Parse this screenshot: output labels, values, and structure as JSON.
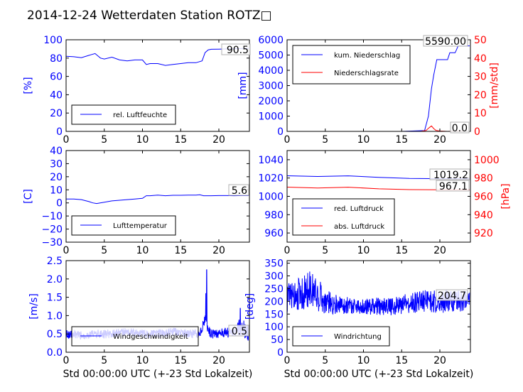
{
  "page": {
    "title": "2014-12-24 Wetterdaten Station ROTZ□"
  },
  "colors": {
    "blue": "#0000ff",
    "red": "#ff0000",
    "black": "#000000"
  },
  "chart_data": [
    {
      "type": "line",
      "ylabel": "[%]",
      "xlabel": "",
      "xlim": [
        0,
        24
      ],
      "ylim": [
        0,
        100
      ],
      "xticks": [
        "0",
        "5",
        "10",
        "15",
        "20"
      ],
      "yticks": [
        "0",
        "20",
        "40",
        "60",
        "80",
        "100"
      ],
      "legend": "lower-left",
      "annotations": [
        "90.5"
      ],
      "series": [
        {
          "name": "rel. Luftfeuchte",
          "color": "#0000ff",
          "x": [
            0,
            1,
            2,
            3,
            3.8,
            4.5,
            5,
            6,
            7,
            8,
            9,
            10,
            10.5,
            11,
            12,
            13,
            14,
            15,
            16,
            17,
            17.8,
            18.2,
            18.6,
            19,
            20,
            21,
            22,
            23,
            23.9
          ],
          "y": [
            82,
            81.5,
            80.5,
            83,
            85,
            80,
            79,
            81,
            78,
            77,
            78,
            78,
            73,
            74,
            74,
            72,
            73,
            74,
            75,
            75,
            77,
            86,
            89,
            89.6,
            89.8,
            90.0,
            90.2,
            90.4,
            90.5
          ]
        }
      ]
    },
    {
      "type": "line",
      "ylabel": "[mm]",
      "y2label": "[mm/std]",
      "xlabel": "",
      "xlim": [
        0,
        24
      ],
      "ylim": [
        0,
        6000
      ],
      "y2lim": [
        0,
        50
      ],
      "xticks": [
        "0",
        "5",
        "10",
        "15",
        "20"
      ],
      "yticks": [
        "0",
        "1000",
        "2000",
        "3000",
        "4000",
        "5000",
        "6000"
      ],
      "y2ticks": [
        "0",
        "10",
        "20",
        "30",
        "40",
        "50"
      ],
      "legend": "upper-left",
      "annotations": [
        "5590.00",
        "0.0"
      ],
      "series": [
        {
          "name": "kum. Niederschlag",
          "color": "#0000ff",
          "axis": "left",
          "x": [
            0,
            5,
            10,
            15,
            18,
            18.5,
            18.9,
            19.2,
            19.6,
            20,
            20.5,
            21,
            21.3,
            22,
            22.4,
            23,
            23.9
          ],
          "y": [
            0,
            0,
            0,
            0,
            50,
            1000,
            2800,
            3700,
            4700,
            4700,
            4700,
            4700,
            5150,
            5150,
            5600,
            5600,
            5600
          ]
        },
        {
          "name": "Niederschlagsrate",
          "color": "#ff0000",
          "axis": "right",
          "x": [
            0,
            17.5,
            18.2,
            18.6,
            18.9,
            19.2,
            19.5,
            20,
            21,
            22,
            23.9
          ],
          "y": [
            0,
            0,
            0.5,
            2,
            3,
            1.5,
            0.5,
            0.2,
            0,
            0.2,
            0
          ]
        }
      ]
    },
    {
      "type": "line",
      "ylabel": "[C]",
      "xlabel": "",
      "xlim": [
        0,
        24
      ],
      "ylim": [
        -30,
        40
      ],
      "xticks": [
        "0",
        "5",
        "10",
        "15",
        "20"
      ],
      "yticks": [
        "−30",
        "−20",
        "−10",
        "0",
        "10",
        "20",
        "30",
        "40"
      ],
      "legend": "lower-left",
      "annotations": [
        "5.6"
      ],
      "series": [
        {
          "name": "Lufttemperatur",
          "color": "#0000ff",
          "x": [
            0,
            1,
            2,
            3,
            3.5,
            4,
            5,
            6,
            7,
            8,
            9,
            10,
            10.5,
            11,
            12,
            13,
            14,
            15,
            16,
            17,
            17.5,
            18,
            19,
            20,
            21,
            22,
            23,
            23.9
          ],
          "y": [
            3,
            3,
            2.5,
            1,
            0,
            -0.5,
            0.5,
            1.5,
            2,
            2.5,
            3,
            3.5,
            5.5,
            5.5,
            6,
            5.5,
            5.8,
            5.8,
            6,
            6,
            6.2,
            5.5,
            5.5,
            5.6,
            5.6,
            5.5,
            5.6,
            5.6
          ]
        }
      ]
    },
    {
      "type": "line",
      "ylabel": "",
      "y2label": "[hPa]",
      "xlabel": "",
      "xlim": [
        0,
        24
      ],
      "ylim": [
        950,
        1050
      ],
      "y2lim": [
        910,
        1010
      ],
      "xticks": [
        "0",
        "5",
        "10",
        "15",
        "20"
      ],
      "yticks": [
        "960",
        "980",
        "1000",
        "1020",
        "1040"
      ],
      "y2ticks": [
        "920",
        "940",
        "960",
        "980",
        "1000"
      ],
      "legend": "lower-left",
      "annotations": [
        "1019.2",
        "967.1"
      ],
      "series": [
        {
          "name": "red. Luftdruck",
          "color": "#0000ff",
          "axis": "left",
          "x": [
            0,
            4,
            8,
            12,
            16,
            20,
            23.9
          ],
          "y": [
            1022.5,
            1021.7,
            1022.4,
            1020.8,
            1019.5,
            1019.3,
            1019.2
          ]
        },
        {
          "name": "abs. Luftdruck",
          "color": "#ff0000",
          "axis": "right",
          "x": [
            0,
            4,
            8,
            12,
            16,
            20,
            23.9
          ],
          "y": [
            970.1,
            969.1,
            970.0,
            968.2,
            967.4,
            967.1,
            967.1
          ]
        }
      ]
    },
    {
      "type": "line",
      "ylabel": "[m/s]",
      "xlabel": "Std 00:00:00 UTC (+-23 Std Lokalzeit)",
      "xlim": [
        0,
        24
      ],
      "ylim": [
        0,
        2.5
      ],
      "xticks": [
        "0",
        "5",
        "10",
        "15",
        "20"
      ],
      "yticks": [
        "0.0",
        "0.5",
        "1.0",
        "1.5",
        "2.0",
        "2.5"
      ],
      "legend": "lower-left",
      "annotations": [
        "0.5"
      ],
      "series": [
        {
          "name": "Windgeschwindigkeit",
          "color": "#0000ff",
          "noisy": true,
          "x": [
            0,
            2,
            4,
            6,
            8,
            10,
            12,
            14,
            16,
            17.5,
            18.2,
            18.6,
            19,
            20,
            21,
            22,
            23,
            23.9
          ],
          "y": [
            0.5,
            0.45,
            0.5,
            0.5,
            0.55,
            0.5,
            0.5,
            0.55,
            0.5,
            0.5,
            0.9,
            0.6,
            0.5,
            0.5,
            0.55,
            0.6,
            0.7,
            0.5
          ],
          "amp": [
            0.12,
            0.12,
            0.12,
            0.12,
            0.12,
            0.12,
            0.12,
            0.12,
            0.12,
            0.12,
            0.12,
            0.12,
            0.12,
            0.12,
            0.15,
            0.2,
            0.25,
            0.2
          ],
          "spikes": [
            [
              18.4,
              2.25
            ],
            [
              18.3,
              1.6
            ],
            [
              22.8,
              1.2
            ]
          ]
        }
      ]
    },
    {
      "type": "line",
      "ylabel": "[deg]",
      "xlabel": "Std 00:00:00 UTC (+-23 Std Lokalzeit)",
      "xlim": [
        0,
        24
      ],
      "ylim": [
        0,
        360
      ],
      "xticks": [
        "0",
        "5",
        "10",
        "15",
        "20"
      ],
      "yticks": [
        "0",
        "50",
        "100",
        "150",
        "200",
        "250",
        "300",
        "350"
      ],
      "legend": "lower-left",
      "annotations": [
        "204.7"
      ],
      "series": [
        {
          "name": "Windrichtung",
          "color": "#0000ff",
          "noisy": true,
          "x": [
            0,
            1,
            2,
            3,
            4,
            5,
            6,
            8,
            10,
            12,
            14,
            16,
            18,
            20,
            22,
            23.9
          ],
          "y": [
            210,
            230,
            230,
            250,
            230,
            200,
            190,
            185,
            180,
            180,
            180,
            195,
            200,
            200,
            200,
            205
          ],
          "amp": [
            60,
            60,
            70,
            70,
            70,
            50,
            40,
            35,
            30,
            35,
            35,
            40,
            45,
            45,
            45,
            40
          ],
          "spikes": []
        }
      ]
    }
  ]
}
